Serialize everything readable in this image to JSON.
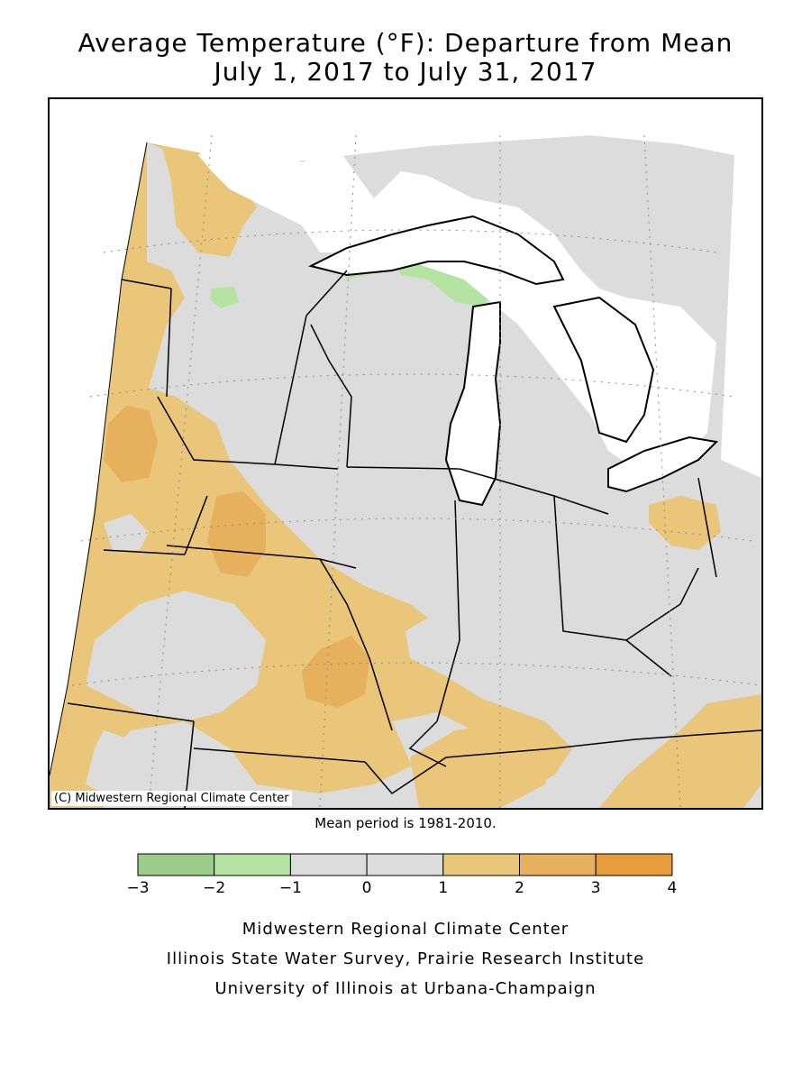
{
  "title_line1": "Average Temperature (°F): Departure from Mean",
  "title_line2": "July 1, 2017 to July 31, 2017",
  "copyright": "(C) Midwestern Regional Climate Center",
  "mean_period": "Mean period is 1981-2010.",
  "legend": {
    "ticks": [
      "−3",
      "−2",
      "−1",
      "0",
      "1",
      "2",
      "3",
      "4"
    ],
    "colors": [
      "#9ccc8a",
      "#b5e3a1",
      "#dcdcdc",
      "#dcdcdc",
      "#e9c67a",
      "#e6b05c",
      "#e89d3c"
    ]
  },
  "credits": [
    "Midwestern Regional Climate Center",
    "Illinois State Water Survey, Prairie Research Institute",
    "University of Illinois at Urbana-Champaign"
  ],
  "colors": {
    "neutral": "#dcdcdc",
    "warm1": "#e9c67a",
    "warm2": "#e6b05c",
    "cool1": "#b5e3a1",
    "water": "#ffffff",
    "border": "#000000"
  }
}
